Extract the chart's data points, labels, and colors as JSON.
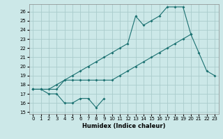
{
  "xlabel": "Humidex (Indice chaleur)",
  "bg_color": "#cce8e8",
  "grid_color": "#aacccc",
  "line_color": "#1a7070",
  "xlim": [
    -0.5,
    23.5
  ],
  "ylim": [
    14.8,
    26.8
  ],
  "yticks": [
    15,
    16,
    17,
    18,
    19,
    20,
    21,
    22,
    23,
    24,
    25,
    26
  ],
  "xticks": [
    0,
    1,
    2,
    3,
    4,
    5,
    6,
    7,
    8,
    9,
    10,
    11,
    12,
    13,
    14,
    15,
    16,
    17,
    18,
    19,
    20,
    21,
    22,
    23
  ],
  "series1_x": [
    0,
    1,
    2,
    3,
    4,
    5,
    6,
    7,
    8,
    9
  ],
  "series1_y": [
    17.5,
    17.5,
    17.0,
    17.0,
    16.0,
    16.0,
    16.5,
    16.5,
    15.5,
    16.5
  ],
  "series2_x": [
    0,
    1,
    2,
    3,
    4,
    5,
    6,
    7,
    8,
    9,
    10,
    11,
    12,
    13,
    14,
    15,
    16,
    17,
    18,
    19,
    20
  ],
  "series2_y": [
    17.5,
    17.5,
    17.5,
    18.0,
    18.5,
    18.5,
    18.5,
    18.5,
    18.5,
    18.5,
    18.5,
    19.0,
    19.5,
    20.0,
    20.5,
    21.0,
    21.5,
    22.0,
    22.5,
    23.0,
    23.5
  ],
  "series3_x": [
    0,
    3,
    4,
    5,
    6,
    7,
    8,
    9,
    10,
    11,
    12,
    13,
    14,
    15,
    16,
    17,
    18,
    19,
    20,
    21,
    22,
    23
  ],
  "series3_y": [
    17.5,
    17.5,
    18.5,
    19.0,
    19.5,
    20.0,
    20.5,
    21.0,
    21.5,
    22.0,
    22.5,
    25.5,
    24.5,
    25.0,
    25.5,
    26.5,
    26.5,
    26.5,
    23.5,
    21.5,
    19.5,
    19.0
  ]
}
